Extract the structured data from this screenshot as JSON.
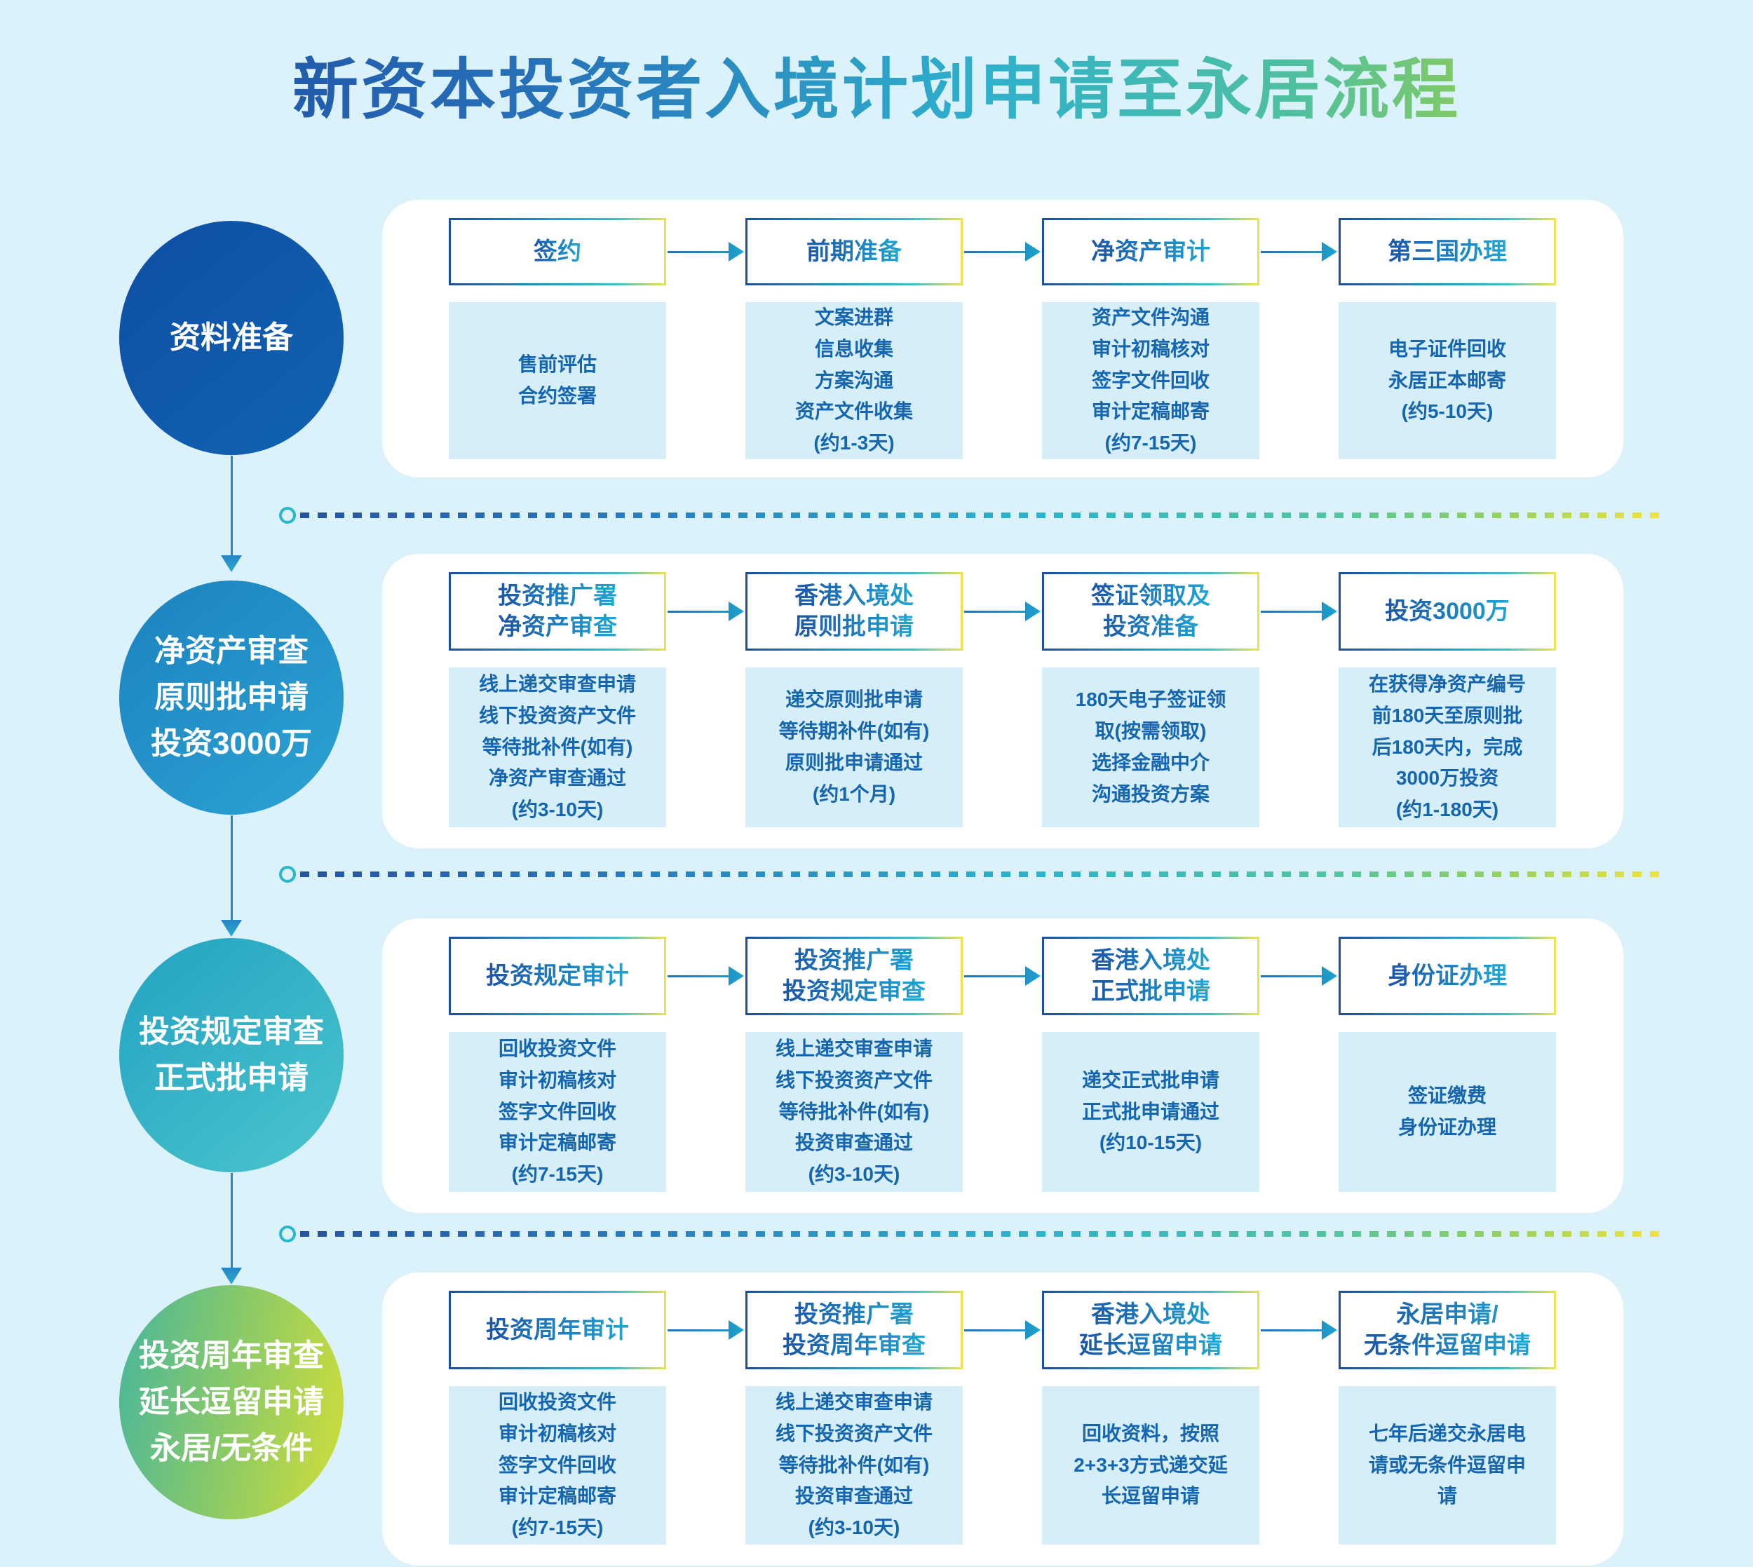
{
  "title": "新资本投资者入境计划申请至永居流程",
  "colors": {
    "page_background": "#dcf2fa",
    "card_background": "#ffffff",
    "detail_background": "#d5eef8",
    "detail_text": "#1565af",
    "title_gradient": [
      "#1e4fa5",
      "#2fb0cc",
      "#b5da38"
    ],
    "circle_row1": "#0f57aa",
    "circle_row2": "#2191c9",
    "circle_row3": "#35b4c8",
    "circle_row4_gradient": [
      "#4eb897",
      "#cbdc3d"
    ],
    "box_border_gradient": [
      "#1d4f9f",
      "#2b9fcb",
      "#ece34d"
    ]
  },
  "rows": [
    {
      "circle": "资料准备",
      "steps": [
        {
          "title": "签约",
          "detail": "售前评估\n合约签署"
        },
        {
          "title": "前期准备",
          "detail": "文案进群\n信息收集\n方案沟通\n资产文件收集\n(约1-3天)"
        },
        {
          "title": "净资产审计",
          "detail": "资产文件沟通\n审计初稿核对\n签字文件回收\n审计定稿邮寄\n(约7-15天)"
        },
        {
          "title": "第三国办理",
          "detail": "电子证件回收\n永居正本邮寄\n(约5-10天)"
        }
      ]
    },
    {
      "circle": "净资产审查\n原则批申请\n投资3000万",
      "steps": [
        {
          "title": "投资推广署\n净资产审查",
          "detail": "线上递交审查申请\n线下投资资产文件\n等待批补件(如有)\n净资产审查通过\n(约3-10天)"
        },
        {
          "title": "香港入境处\n原则批申请",
          "detail": "递交原则批申请\n等待期补件(如有)\n原则批申请通过\n(约1个月)"
        },
        {
          "title": "签证领取及\n投资准备",
          "detail": "180天电子签证领\n取(按需领取)\n选择金融中介\n沟通投资方案"
        },
        {
          "title": "投资3000万",
          "detail": "在获得净资产编号\n前180天至原则批\n后180天内，完成\n3000万投资\n(约1-180天)"
        }
      ]
    },
    {
      "circle": "投资规定审查\n正式批申请",
      "steps": [
        {
          "title": "投资规定审计",
          "detail": "回收投资文件\n审计初稿核对\n签字文件回收\n审计定稿邮寄\n(约7-15天)"
        },
        {
          "title": "投资推广署\n投资规定审查",
          "detail": "线上递交审查申请\n线下投资资产文件\n等待批补件(如有)\n投资审查通过\n(约3-10天)"
        },
        {
          "title": "香港入境处\n正式批申请",
          "detail": "递交正式批申请\n正式批申请通过\n(约10-15天)"
        },
        {
          "title": "身份证办理",
          "detail": "签证缴费\n身份证办理"
        }
      ]
    },
    {
      "circle": "投资周年审查\n延长逗留申请\n永居/无条件",
      "steps": [
        {
          "title": "投资周年审计",
          "detail": "回收投资文件\n审计初稿核对\n签字文件回收\n审计定稿邮寄\n(约7-15天)"
        },
        {
          "title": "投资推广署\n投资周年审查",
          "detail": "线上递交审查申请\n线下投资资产文件\n等待批补件(如有)\n投资审查通过\n(约3-10天)"
        },
        {
          "title": "香港入境处\n延长逗留申请",
          "detail": "回收资料，按照\n2+3+3方式递交延\n长逗留申请"
        },
        {
          "title": "永居申请/\n无条件逗留申请",
          "detail": "七年后递交永居电\n请或无条件逗留申\n请"
        }
      ]
    }
  ]
}
